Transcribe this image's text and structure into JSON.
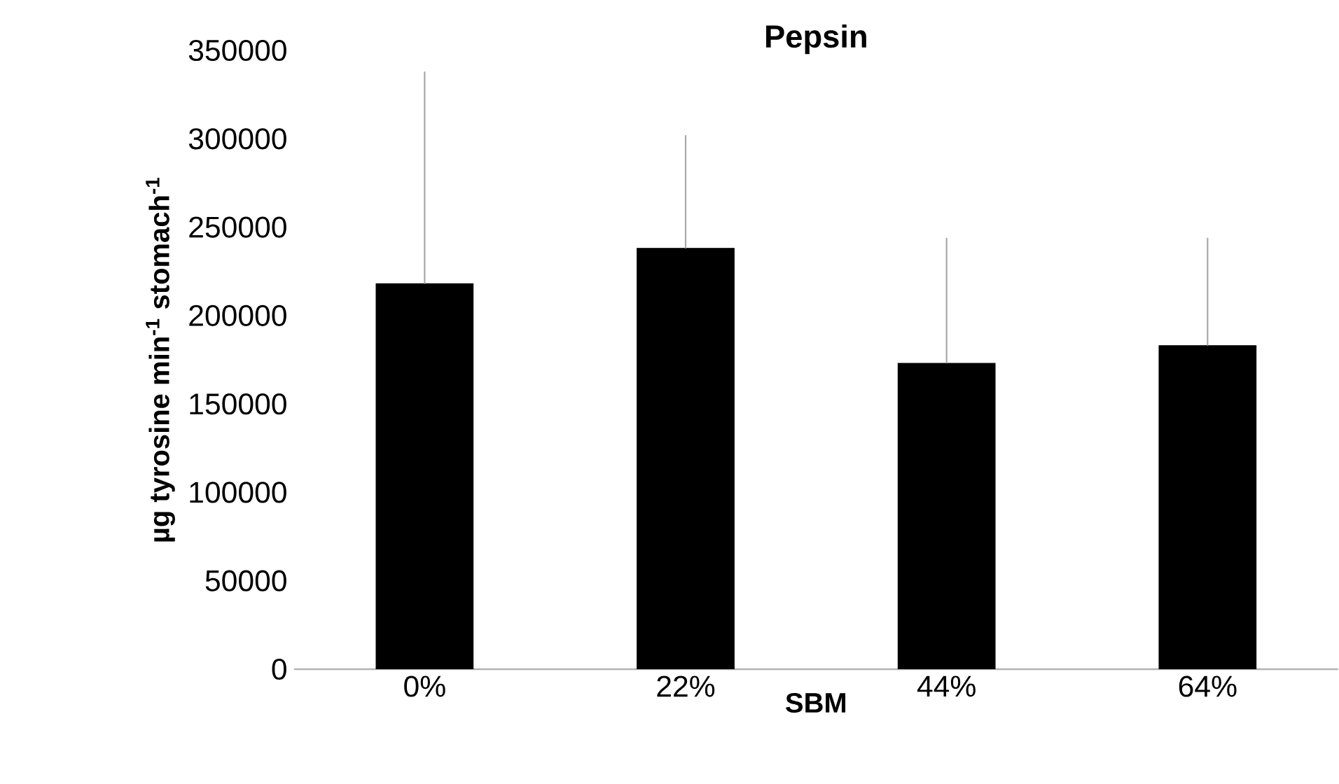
{
  "chart_data": {
    "type": "bar",
    "title": "**Pepsin**",
    "xlabel": "**SBM**",
    "ylabel": "**µg tyrosine min$^{-1}$ stomach$^{-1}$**",
    "categories": [
      "0%",
      "22%",
      "44%",
      "64%"
    ],
    "values": [
      218000,
      238000,
      173000,
      183000
    ],
    "errors": [
      [
        218000,
        338000
      ],
      [
        238000,
        302000
      ],
      [
        173000,
        244000
      ],
      [
        183000,
        244000
      ]
    ],
    "color": "#000000",
    "ylim": [
      0,
      350000
    ],
    "yticks": [
      0,
      50000,
      100000,
      150000,
      200000,
      250000,
      300000,
      350000
    ],
    "grid": false
  }
}
